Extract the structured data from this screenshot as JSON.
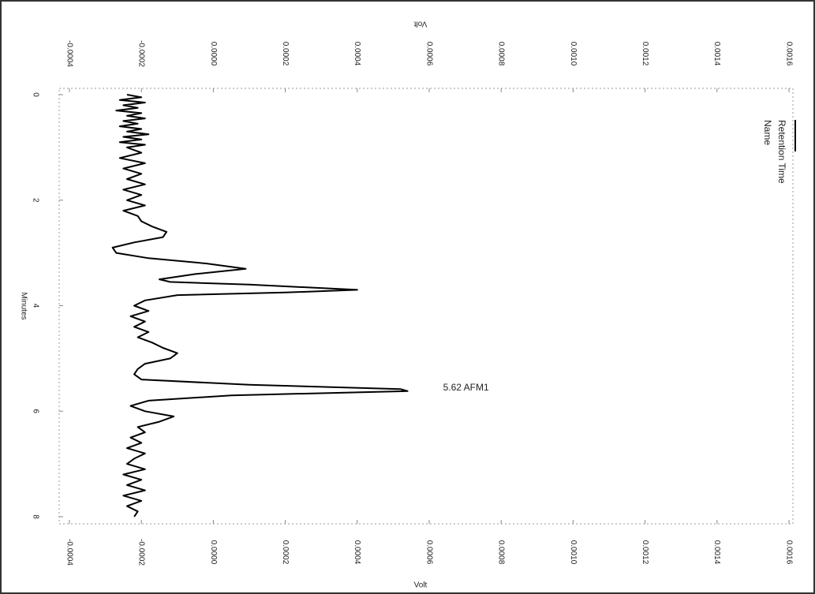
{
  "chart_data": {
    "type": "line",
    "axis_label_value": "Volt",
    "axis_label_time": "Minutes",
    "legend_labels": [
      "Retention Time",
      "Name"
    ],
    "annotation": {
      "text": "5.62  AFM1",
      "x": 5.62,
      "value": 0.00054
    },
    "color": "#000000",
    "grid": false,
    "x": [
      0.0,
      0.05,
      0.1,
      0.15,
      0.2,
      0.25,
      0.3,
      0.35,
      0.4,
      0.45,
      0.5,
      0.55,
      0.6,
      0.65,
      0.7,
      0.75,
      0.8,
      0.85,
      0.9,
      0.95,
      1.0,
      1.1,
      1.2,
      1.3,
      1.4,
      1.5,
      1.6,
      1.7,
      1.8,
      1.9,
      2.0,
      2.1,
      2.2,
      2.3,
      2.4,
      2.5,
      2.6,
      2.7,
      2.8,
      2.9,
      3.0,
      3.1,
      3.2,
      3.3,
      3.4,
      3.5,
      3.55,
      3.6,
      3.7,
      3.75,
      3.8,
      3.9,
      4.0,
      4.1,
      4.2,
      4.3,
      4.4,
      4.5,
      4.6,
      4.7,
      4.8,
      4.9,
      5.0,
      5.1,
      5.2,
      5.3,
      5.4,
      5.5,
      5.58,
      5.62,
      5.7,
      5.8,
      5.9,
      6.0,
      6.1,
      6.2,
      6.3,
      6.4,
      6.5,
      6.6,
      6.7,
      6.8,
      6.9,
      7.0,
      7.1,
      7.2,
      7.3,
      7.4,
      7.5,
      7.6,
      7.7,
      7.8,
      7.9,
      8.0
    ],
    "values": [
      -0.00024,
      -0.0002,
      -0.00026,
      -0.00019,
      -0.00025,
      -0.00021,
      -0.00027,
      -0.0002,
      -0.00024,
      -0.00019,
      -0.00025,
      -0.00021,
      -0.00026,
      -0.0002,
      -0.00024,
      -0.00018,
      -0.00025,
      -0.0002,
      -0.00026,
      -0.00019,
      -0.00024,
      -0.0002,
      -0.00026,
      -0.00019,
      -0.00025,
      -0.0002,
      -0.00024,
      -0.00019,
      -0.00025,
      -0.0002,
      -0.00024,
      -0.00019,
      -0.00025,
      -0.00021,
      -0.0002,
      -0.00017,
      -0.00013,
      -0.00014,
      -0.00022,
      -0.00028,
      -0.00027,
      -0.00018,
      -2e-05,
      9e-05,
      -5e-05,
      -0.00015,
      -0.00012,
      0.0001,
      0.0004,
      0.0002,
      -0.0001,
      -0.00019,
      -0.00022,
      -0.00018,
      -0.00023,
      -0.00019,
      -0.00022,
      -0.00018,
      -0.00021,
      -0.00017,
      -0.00014,
      -0.0001,
      -0.00012,
      -0.00019,
      -0.00021,
      -0.00022,
      -0.0002,
      0.0001,
      0.00052,
      0.00054,
      5e-05,
      -0.00018,
      -0.00023,
      -0.00019,
      -0.00011,
      -0.00015,
      -0.00021,
      -0.00019,
      -0.00023,
      -0.0002,
      -0.00024,
      -0.00019,
      -0.00022,
      -0.00024,
      -0.00019,
      -0.00025,
      -0.0002,
      -0.00024,
      -0.00019,
      -0.00025,
      -0.0002,
      -0.00024,
      -0.00021,
      -0.00022
    ],
    "xlim": [
      0,
      8
    ],
    "xticks": [
      0,
      2,
      4,
      6,
      8
    ],
    "ylim": [
      -0.0004,
      0.0016
    ],
    "yticks": [
      {
        "value": -0.0004,
        "label": "-0.0004"
      },
      {
        "value": -0.0002,
        "label": "-0.0002"
      },
      {
        "value": 0,
        "label": "0.0000"
      },
      {
        "value": 0.0002,
        "label": "0.0002"
      },
      {
        "value": 0.0004,
        "label": "0.0004"
      },
      {
        "value": 0.0006,
        "label": "0.0006"
      },
      {
        "value": 0.0008,
        "label": "0.0008"
      },
      {
        "value": 0.001,
        "label": "0.0010"
      },
      {
        "value": 0.0012,
        "label": "0.0012"
      },
      {
        "value": 0.0014,
        "label": "0.0014"
      },
      {
        "value": 0.0016,
        "label": "0.0016"
      }
    ]
  }
}
